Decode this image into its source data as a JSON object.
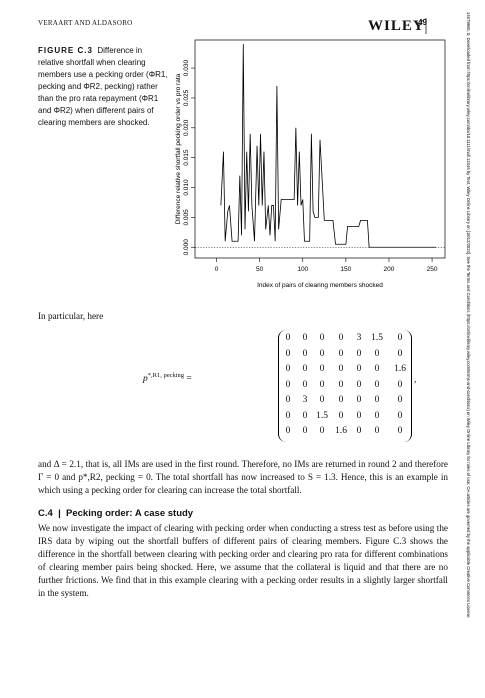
{
  "header": {
    "authors": "VERAART AND ALDASORO",
    "publisher": "WILEY",
    "page": "49"
  },
  "side_note": "14679965, 0, Downloaded from https://onlinelibrary.wiley.com/doi/10.1111/mafi.12446 by Test, Wiley Online Library on [18/12/2024]. See the Terms and Conditions (https://onlinelibrary.wiley.com/terms-and-conditions) on Wiley Online Library for rules of use; OA articles are governed by the applicable Creative Commons License",
  "figure": {
    "label": "FIGURE C.3",
    "caption": "Difference in relative shortfall when clearing members use a pecking order (ΦR1, pecking and ΦR2, pecking) rather than the pro rata repayment (ΦR1 and ΦR2) when different pairs of clearing members are shocked."
  },
  "chart_data": {
    "type": "line",
    "ylabel": "Difference relative shortfall pecking order vs pro rata",
    "xlabel": "Index of pairs of clearing members shocked",
    "x": [
      5,
      8,
      10,
      13,
      15,
      18,
      25,
      27,
      29,
      31,
      33,
      35,
      37,
      39,
      41,
      44,
      47,
      49,
      51,
      53,
      55,
      57,
      60,
      62,
      64,
      66,
      68,
      70,
      72,
      75,
      90,
      92,
      94,
      96,
      98,
      100,
      102,
      108,
      110,
      112,
      114,
      118,
      120,
      125,
      135,
      138,
      150,
      152,
      165,
      167,
      175,
      177,
      255
    ],
    "series": [
      {
        "color": "#000000",
        "values": [
          0.007,
          0.016,
          0.001,
          0.006,
          0.007,
          0.001,
          0.001,
          0.012,
          0.002,
          0.034,
          0.003,
          0.016,
          0.006,
          0.019,
          0.007,
          0.001,
          0.017,
          0.007,
          0.019,
          0.007,
          0.016,
          0.003,
          0.007,
          0.002,
          0.007,
          0.007,
          0.001,
          0.027,
          0.003,
          0.008,
          0.008,
          0.02,
          0.007,
          0.016,
          0.007,
          0.008,
          0.001,
          0.001,
          0.019,
          0.006,
          0.005,
          0.005,
          0.018,
          0.0045,
          0.0045,
          0.0005,
          0.0005,
          0.0035,
          0.0035,
          0.0045,
          0.0045,
          0,
          0
        ]
      }
    ],
    "xlim": [
      -25,
      265
    ],
    "xticks": [
      0,
      50,
      100,
      150,
      200,
      250
    ],
    "ylim": [
      -0.0018,
      0.0347
    ],
    "yticks": [
      {
        "value": 0,
        "label": "0.000"
      },
      {
        "value": 0.005,
        "label": "0.005"
      },
      {
        "value": 0.01,
        "label": "0.010"
      },
      {
        "value": 0.015,
        "label": "0.015"
      },
      {
        "value": 0.02,
        "label": "0.020"
      },
      {
        "value": 0.025,
        "label": "0.025"
      },
      {
        "value": 0.03,
        "label": "0.030"
      }
    ]
  },
  "intro": "In particular, here",
  "equation": {
    "lhs": "p",
    "lhs_sup": "*,R1, pecking",
    "eq": "=",
    "rows": [
      [
        0,
        0,
        0,
        0,
        3,
        1.5,
        0
      ],
      [
        0,
        0,
        0,
        0,
        0,
        0,
        0
      ],
      [
        0,
        0,
        0,
        0,
        0,
        0,
        1.6
      ],
      [
        0,
        0,
        0,
        0,
        0,
        0,
        0
      ],
      [
        0,
        3,
        0,
        0,
        0,
        0,
        0
      ],
      [
        0,
        0,
        1.5,
        0,
        0,
        0,
        0
      ],
      [
        0,
        0,
        0,
        1.6,
        0,
        0,
        0
      ]
    ],
    "end": ","
  },
  "paragraph1": "and Δ = 2.1, that is, all IMs are used in the first round. Therefore, no IMs are returned in round 2 and therefore Γ = 0 and p*,R2, pecking = 0. The total shortfall has now increased to S = 1.3. Hence, this is an example in which using a pecking order for clearing can increase the total shortfall.",
  "section": {
    "number": "C.4",
    "title": "Pecking order: A case study"
  },
  "paragraph2": "We now investigate the impact of clearing with pecking order when conducting a stress test as before using the IRS data by wiping out the shortfall buffers of different pairs of clearing members. Figure C.3 shows the difference in the shortfall between clearing with pecking order and clearing pro rata for different combinations of clearing member pairs being shocked. Here, we assume that the collateral is liquid and that there are no further frictions. We find that in this example clearing with a pecking order results in a slightly larger shortfall in the system."
}
